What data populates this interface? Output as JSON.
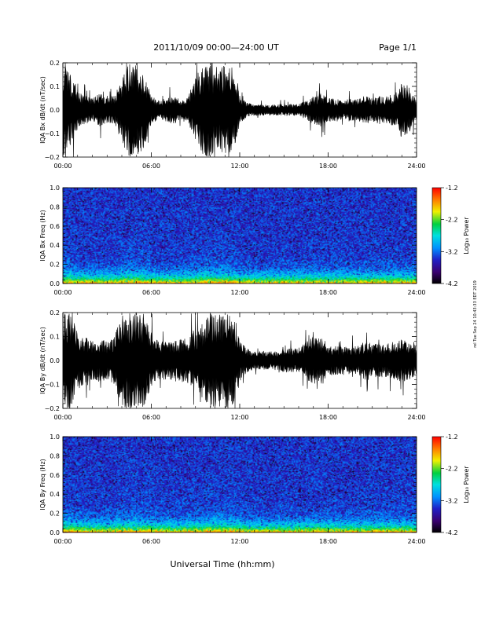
{
  "header": {
    "title": "2011/10/09   00:00—24:00 UT",
    "page": "Page 1/1"
  },
  "footer": {
    "xlabel": "Universal Time (hh:mm)",
    "stamp": "rel Tue Sep 24 10:43:33 EDT 2019"
  },
  "colors": {
    "waveform": "#000000",
    "spectrogram_scale": [
      "#000000",
      "#3a0070",
      "#2020c8",
      "#0090ff",
      "#00e0e0",
      "#00d040",
      "#f0f000",
      "#ff8000",
      "#ff0000"
    ]
  },
  "chart_data": [
    {
      "type": "line",
      "ylabel": "IQA Bx dB/dt (nT/sec)",
      "x_ticks": [
        "00:00",
        "06:00",
        "12:00",
        "18:00",
        "24:00"
      ],
      "y_ticks": [
        "0.2",
        "0.1",
        "0.0",
        "−0.1",
        "−0.2"
      ],
      "xlim": [
        0,
        24
      ],
      "ylim": [
        -0.2,
        0.2
      ],
      "envelope": {
        "hours": [
          0,
          0.5,
          1,
          1.5,
          2,
          2.5,
          3,
          3.5,
          4,
          4.5,
          5,
          5.5,
          6,
          6.5,
          7,
          7.5,
          8,
          8.5,
          9,
          9.5,
          10,
          10.5,
          11,
          11.5,
          12,
          12.5,
          13,
          13.5,
          14,
          14.5,
          15,
          15.5,
          16,
          16.5,
          17,
          17.5,
          18,
          18.5,
          19,
          19.5,
          20,
          20.5,
          21,
          21.5,
          22,
          22.5,
          23,
          23.5,
          24
        ],
        "amplitude": [
          0.2,
          0.15,
          0.08,
          0.06,
          0.05,
          0.07,
          0.06,
          0.06,
          0.14,
          0.2,
          0.2,
          0.16,
          0.06,
          0.04,
          0.05,
          0.06,
          0.05,
          0.06,
          0.14,
          0.2,
          0.2,
          0.16,
          0.2,
          0.2,
          0.06,
          0.03,
          0.025,
          0.025,
          0.02,
          0.025,
          0.025,
          0.025,
          0.025,
          0.04,
          0.06,
          0.07,
          0.05,
          0.05,
          0.04,
          0.05,
          0.05,
          0.06,
          0.05,
          0.06,
          0.06,
          0.07,
          0.12,
          0.1,
          0.04
        ]
      }
    },
    {
      "type": "heatmap",
      "ylabel": "IQA Bx Freq (Hz)",
      "x_ticks": [
        "00:00",
        "06:00",
        "12:00",
        "18:00",
        "24:00"
      ],
      "y_ticks": [
        "1.0",
        "0.8",
        "0.6",
        "0.4",
        "0.2",
        "0.0"
      ],
      "xlim": [
        0,
        24
      ],
      "ylim": [
        0,
        1
      ],
      "colorbar": {
        "label": "Log₁₀ Power",
        "ticks": [
          "-1.2",
          "-2.2",
          "-3.2",
          "-4.2"
        ],
        "range": [
          -4.2,
          -1.2
        ]
      }
    },
    {
      "type": "line",
      "ylabel": "IQA By dB/dt (nT/sec)",
      "x_ticks": [
        "00:00",
        "06:00",
        "12:00",
        "18:00",
        "24:00"
      ],
      "y_ticks": [
        "0.2",
        "0.1",
        "0.0",
        "−0.1",
        "−0.2"
      ],
      "xlim": [
        0,
        24
      ],
      "ylim": [
        -0.2,
        0.2
      ],
      "envelope": {
        "hours": [
          0,
          0.5,
          1,
          1.5,
          2,
          2.5,
          3,
          3.5,
          4,
          4.5,
          5,
          5.5,
          6,
          6.5,
          7,
          7.5,
          8,
          8.5,
          9,
          9.5,
          10,
          10.5,
          11,
          11.5,
          12,
          12.5,
          13,
          13.5,
          14,
          14.5,
          15,
          15.5,
          16,
          16.5,
          17,
          17.5,
          18,
          18.5,
          19,
          19.5,
          20,
          20.5,
          21,
          21.5,
          22,
          22.5,
          23,
          23.5,
          24
        ],
        "amplitude": [
          0.2,
          0.2,
          0.12,
          0.1,
          0.08,
          0.09,
          0.08,
          0.1,
          0.2,
          0.2,
          0.2,
          0.2,
          0.12,
          0.08,
          0.08,
          0.08,
          0.09,
          0.1,
          0.12,
          0.16,
          0.2,
          0.2,
          0.2,
          0.2,
          0.08,
          0.05,
          0.04,
          0.04,
          0.04,
          0.04,
          0.05,
          0.05,
          0.05,
          0.08,
          0.1,
          0.1,
          0.07,
          0.06,
          0.06,
          0.06,
          0.06,
          0.08,
          0.07,
          0.07,
          0.07,
          0.08,
          0.09,
          0.08,
          0.06
        ]
      }
    },
    {
      "type": "heatmap",
      "ylabel": "IQA By Freq (Hz)",
      "x_ticks": [
        "00:00",
        "06:00",
        "12:00",
        "18:00",
        "24:00"
      ],
      "y_ticks": [
        "1.0",
        "0.8",
        "0.6",
        "0.4",
        "0.2",
        "0.0"
      ],
      "xlim": [
        0,
        24
      ],
      "ylim": [
        0,
        1
      ],
      "colorbar": {
        "label": "Log₁₀ Power",
        "ticks": [
          "-1.2",
          "-2.2",
          "-3.2",
          "-4.2"
        ],
        "range": [
          -4.2,
          -1.2
        ]
      }
    }
  ]
}
